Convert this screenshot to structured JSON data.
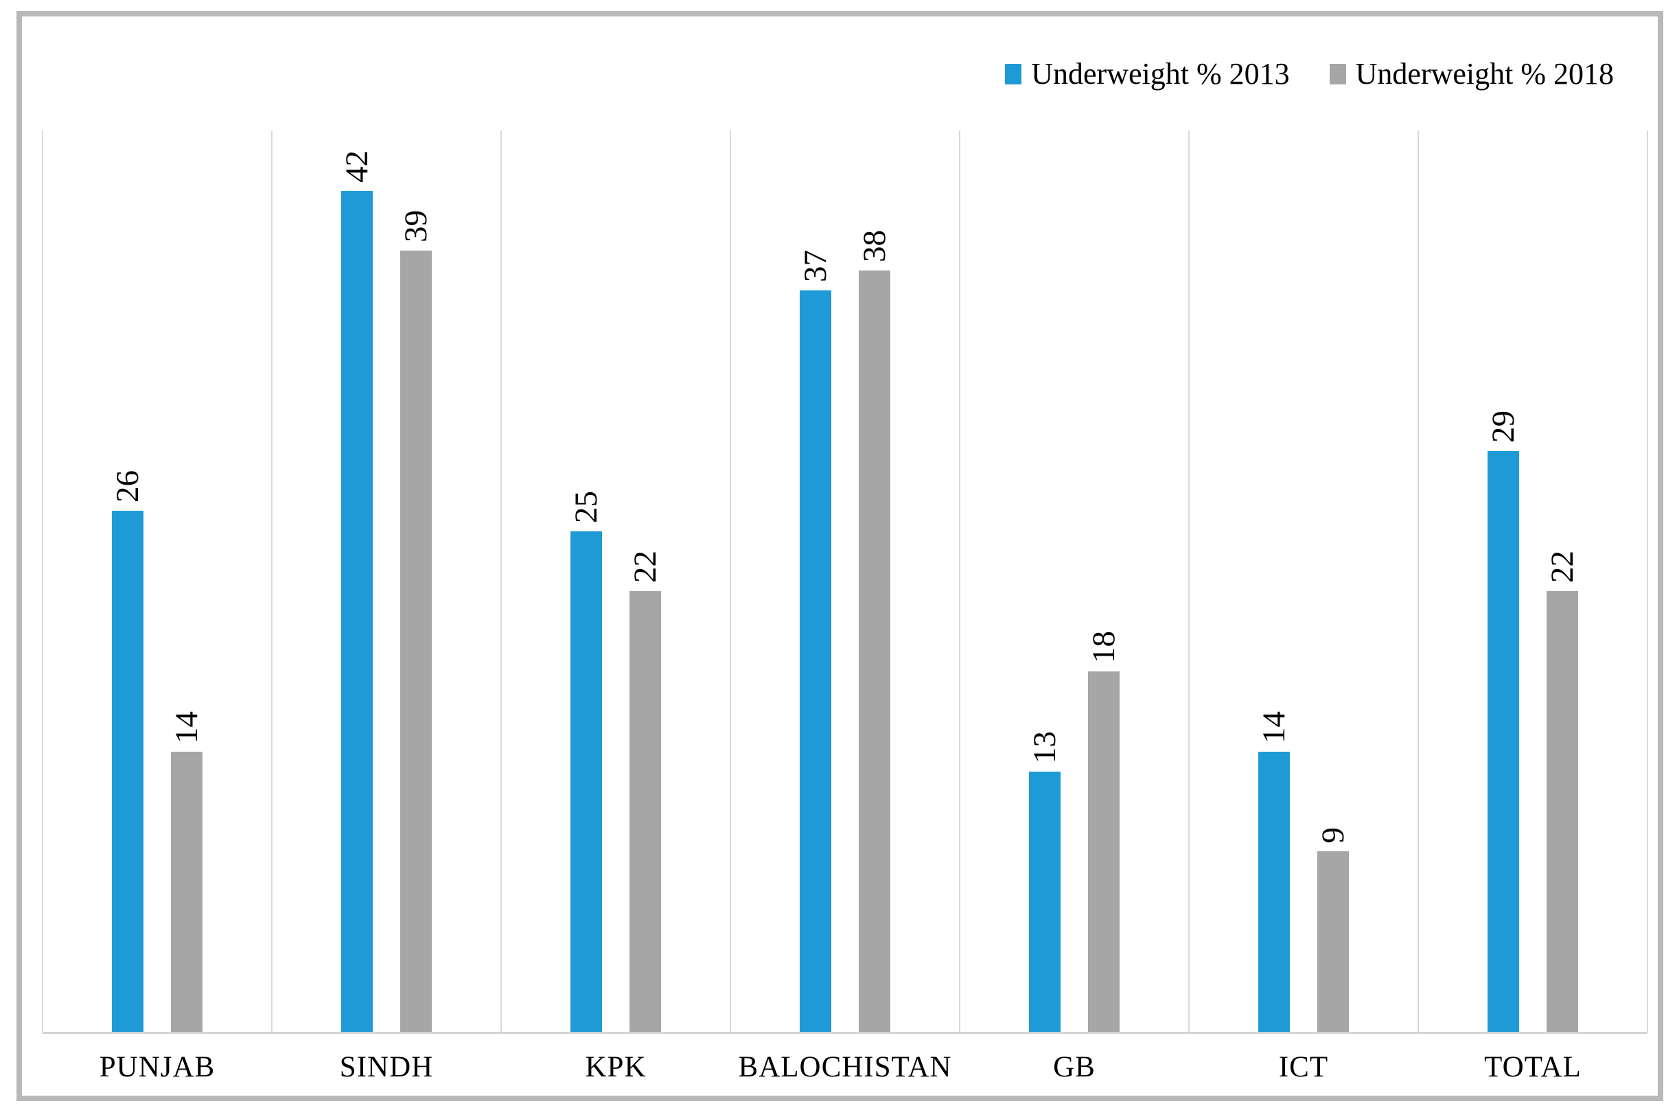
{
  "chart_data": {
    "type": "bar",
    "title": "",
    "categories": [
      "PUNJAB",
      "SINDH",
      "KPK",
      "BALOCHISTAN",
      "GB",
      "ICT",
      "TOTAL"
    ],
    "series": [
      {
        "name": "Underweight % 2013",
        "color": "#1e9bd7",
        "values": [
          26,
          42,
          25,
          37,
          13,
          14,
          29
        ]
      },
      {
        "name": "Underweight % 2018",
        "color": "#a6a6a6",
        "values": [
          14,
          39,
          22,
          38,
          18,
          9,
          22
        ]
      }
    ],
    "ylim": [
      0,
      45
    ],
    "xlabel": "",
    "ylabel": "",
    "y_axis_labels_visible": false,
    "gridlines": "vertical category separators only",
    "legend_position": "top-right",
    "data_labels": "values shown above bars, rotated 90° reading bottom-to-top"
  },
  "legend": {
    "entries": [
      {
        "label": "Underweight % 2013",
        "color": "#1e9bd7"
      },
      {
        "label": "Underweight % 2018",
        "color": "#a6a6a6"
      }
    ]
  },
  "colors": {
    "bar_2013": "#1e9bd7",
    "bar_2018": "#a6a6a6",
    "gridline": "#d9d9d9",
    "axis_line": "#d4d4d4",
    "frame_border": "#b9b9b9",
    "text": "#000000",
    "background": "#ffffff"
  }
}
